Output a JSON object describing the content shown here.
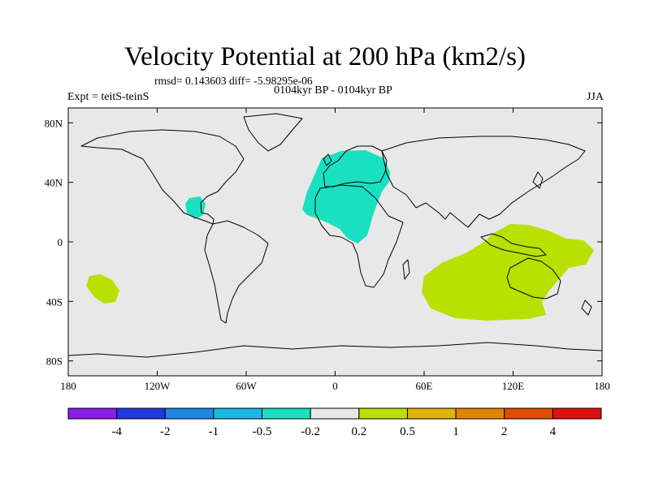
{
  "title": "Velocity Potential at 200 hPa (km2/s)",
  "stats": "rmsd= 0.143603 diff= -5.98295e-06",
  "subtitle": "0104kyr BP - 0104kyr BP",
  "experiment": "Expt = teitS-teinS",
  "season": "JJA",
  "chart_data": {
    "type": "map",
    "projection": "cylindrical-equidistant",
    "lon_range": [
      -180,
      180
    ],
    "lat_range": [
      -90,
      90
    ],
    "lon_tick_labels": [
      "180",
      "120W",
      "60W",
      "0",
      "60E",
      "120E",
      "180"
    ],
    "lat_tick_labels": [
      "80N",
      "40N",
      "0",
      "40S",
      "80S"
    ],
    "background_color": "#e8e8e8",
    "anomaly_regions": [
      {
        "name": "north-africa-europe",
        "level": "-0.5 to -0.2",
        "color": "#19e0c0"
      },
      {
        "name": "central-america",
        "level": "-0.5 to -0.2",
        "color": "#19e0c0"
      },
      {
        "name": "maritime-continent-australia",
        "level": "0.2 to 0.5",
        "color": "#b9e000"
      },
      {
        "name": "south-pacific",
        "level": "0.2 to 0.5",
        "color": "#b9e000"
      }
    ],
    "colorbar": {
      "labels": [
        "-4",
        "-2",
        "-1",
        "-0.5",
        "-0.2",
        "0.2",
        "0.5",
        "1",
        "2",
        "4"
      ],
      "colors": [
        "#8a1ee8",
        "#2438e0",
        "#1c88e0",
        "#1ab8e2",
        "#19e0c0",
        "#e8e8e8",
        "#b9e000",
        "#e0b400",
        "#e08400",
        "#e04c00",
        "#e01010"
      ]
    }
  }
}
